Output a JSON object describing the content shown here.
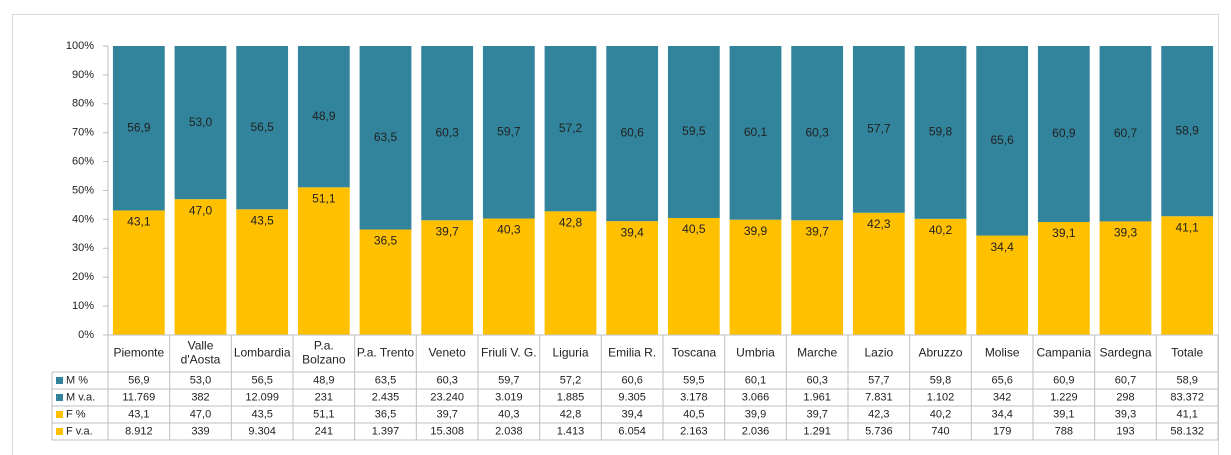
{
  "chart_data": {
    "type": "stacked_bar",
    "categories": [
      "Piemonte",
      "Valle d'Aosta",
      "Lombardia",
      "P.a. Bolzano",
      "P.a. Trento",
      "Veneto",
      "Friuli V. G.",
      "Liguria",
      "Emilia R.",
      "Toscana",
      "Umbria",
      "Marche",
      "Lazio",
      "Abruzzo",
      "Molise",
      "Campania",
      "Sardegna",
      "Totale"
    ],
    "series": [
      {
        "name": "M %",
        "color": "#31849b",
        "values": [
          56.9,
          53.0,
          56.5,
          48.9,
          63.5,
          60.3,
          59.7,
          57.2,
          60.6,
          59.5,
          60.1,
          60.3,
          57.7,
          59.8,
          65.6,
          60.9,
          60.7,
          58.9
        ],
        "value_labels": [
          "56,9",
          "53,0",
          "56,5",
          "48,9",
          "63,5",
          "60,3",
          "59,7",
          "57,2",
          "60,6",
          "59,5",
          "60,1",
          "60,3",
          "57,7",
          "59,8",
          "65,6",
          "60,9",
          "60,7",
          "58,9"
        ]
      },
      {
        "name": "F %",
        "color": "#ffc000",
        "values": [
          43.1,
          47.0,
          43.5,
          51.1,
          36.5,
          39.7,
          40.3,
          42.8,
          39.4,
          40.5,
          39.9,
          39.7,
          42.3,
          40.2,
          34.4,
          39.1,
          39.3,
          41.1
        ],
        "value_labels": [
          "43,1",
          "47,0",
          "43,5",
          "51,1",
          "36,5",
          "39,7",
          "40,3",
          "42,8",
          "39,4",
          "40,5",
          "39,9",
          "39,7",
          "42,3",
          "40,2",
          "34,4",
          "39,1",
          "39,3",
          "41,1"
        ]
      }
    ],
    "data_table": [
      {
        "name": "M v.a.",
        "color": "#31849b",
        "values": [
          "11.769",
          "382",
          "12.099",
          "231",
          "2.435",
          "23.240",
          "3.019",
          "1.885",
          "9.305",
          "3.178",
          "3.066",
          "1.961",
          "7.831",
          "1.102",
          "342",
          "1.229",
          "298",
          "83.372"
        ]
      },
      {
        "name": "F v.a.",
        "color": "#ffc000",
        "values": [
          "8.912",
          "339",
          "9.304",
          "241",
          "1.397",
          "15.308",
          "2.038",
          "1.413",
          "6.054",
          "2.163",
          "2.036",
          "1.291",
          "5.736",
          "740",
          "179",
          "788",
          "193",
          "58.132"
        ]
      }
    ],
    "ylim": [
      0,
      100
    ],
    "yticks": [
      {
        "value": 0,
        "label": "0%"
      },
      {
        "value": 10,
        "label": "10%"
      },
      {
        "value": 20,
        "label": "20%"
      },
      {
        "value": 30,
        "label": "30%"
      },
      {
        "value": 40,
        "label": "40%"
      },
      {
        "value": 50,
        "label": "50%"
      },
      {
        "value": 60,
        "label": "60%"
      },
      {
        "value": 70,
        "label": "70%"
      },
      {
        "value": 80,
        "label": "80%"
      },
      {
        "value": 90,
        "label": "90%"
      },
      {
        "value": 100,
        "label": "100%"
      }
    ]
  }
}
